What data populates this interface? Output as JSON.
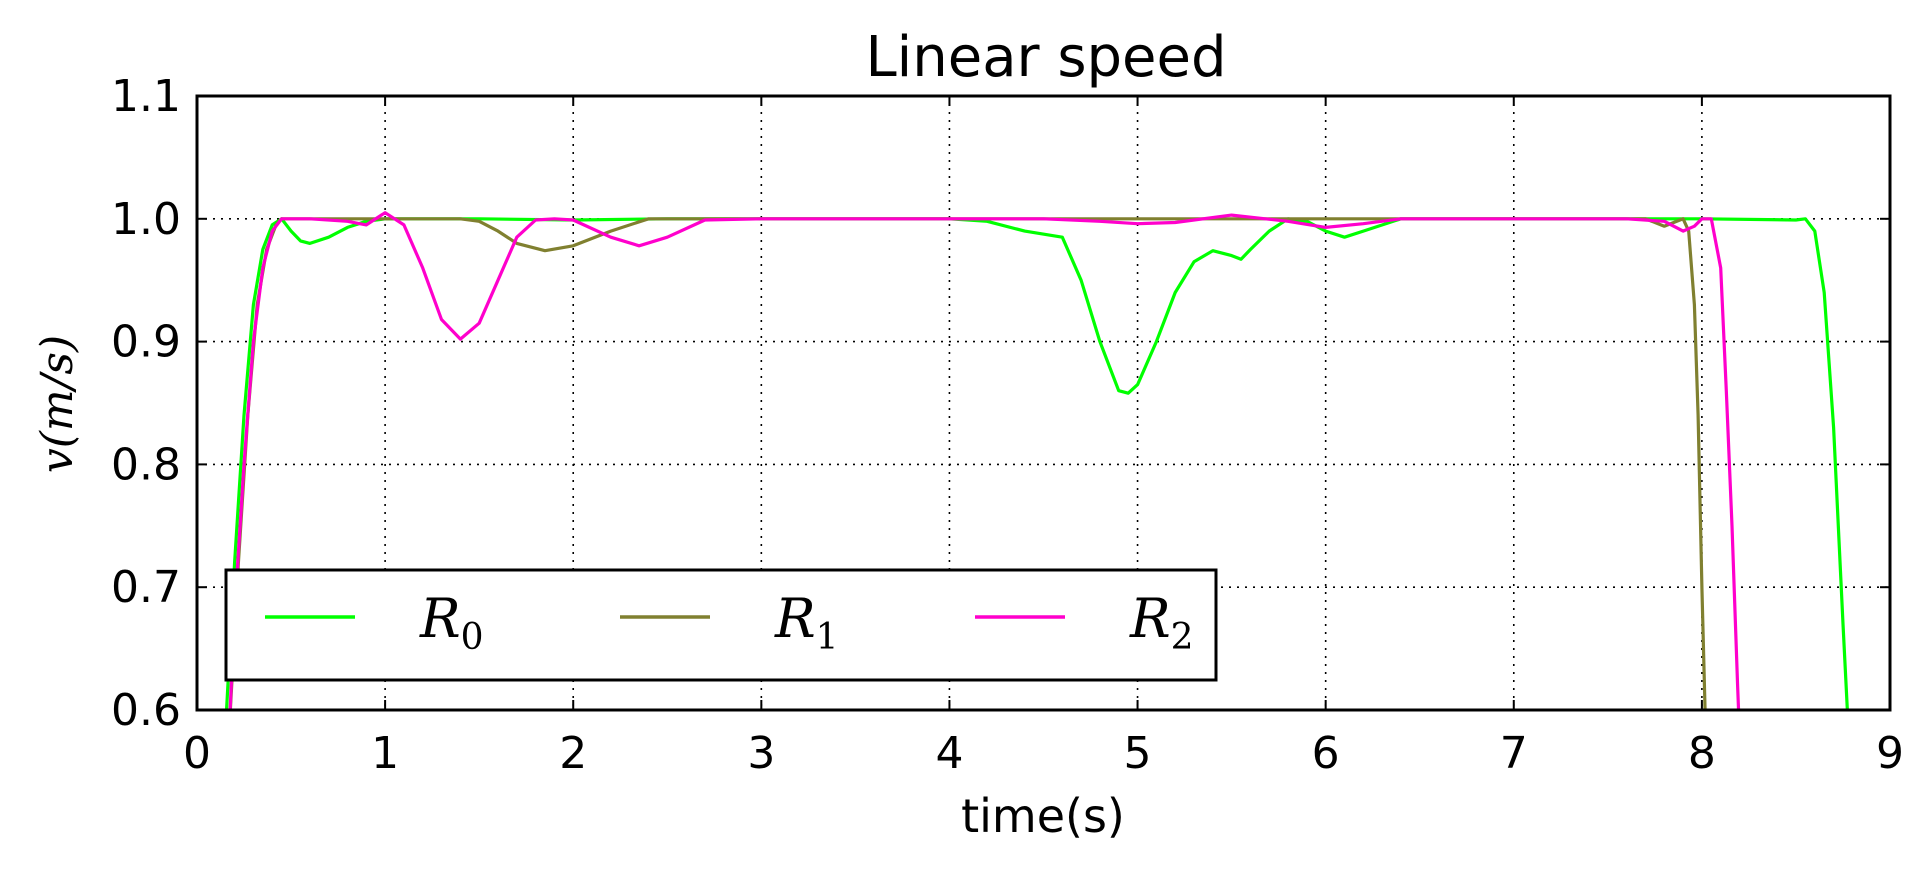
{
  "chart_data": {
    "type": "line",
    "title": "Linear speed",
    "xlabel": "time(s)",
    "ylabel": "v(m/s)",
    "xlim": [
      0,
      9
    ],
    "ylim": [
      0.6,
      1.1
    ],
    "x_ticks": [
      "0",
      "1",
      "2",
      "3",
      "4",
      "5",
      "6",
      "7",
      "8",
      "9"
    ],
    "y_ticks": [
      "0.6",
      "0.7",
      "0.8",
      "0.9",
      "1.0",
      "1.1"
    ],
    "grid": true,
    "legend_position": "lower-left",
    "series": [
      {
        "name": "R0",
        "label_base": "R",
        "label_sub": "0",
        "color": "#00ff00",
        "points": [
          [
            0.15,
            0.58
          ],
          [
            0.2,
            0.72
          ],
          [
            0.25,
            0.84
          ],
          [
            0.3,
            0.93
          ],
          [
            0.35,
            0.975
          ],
          [
            0.4,
            0.995
          ],
          [
            0.45,
            1.0
          ],
          [
            0.5,
            0.99
          ],
          [
            0.55,
            0.982
          ],
          [
            0.6,
            0.98
          ],
          [
            0.7,
            0.985
          ],
          [
            0.8,
            0.993
          ],
          [
            0.9,
            0.998
          ],
          [
            1.0,
            1.0
          ],
          [
            1.5,
            1.0
          ],
          [
            2.0,
            0.999
          ],
          [
            2.5,
            1.0
          ],
          [
            3.0,
            1.0
          ],
          [
            3.5,
            1.0
          ],
          [
            4.0,
            1.0
          ],
          [
            4.2,
            0.998
          ],
          [
            4.4,
            0.99
          ],
          [
            4.6,
            0.985
          ],
          [
            4.7,
            0.95
          ],
          [
            4.8,
            0.9
          ],
          [
            4.9,
            0.86
          ],
          [
            4.95,
            0.858
          ],
          [
            5.0,
            0.865
          ],
          [
            5.1,
            0.9
          ],
          [
            5.2,
            0.94
          ],
          [
            5.3,
            0.965
          ],
          [
            5.4,
            0.974
          ],
          [
            5.5,
            0.97
          ],
          [
            5.55,
            0.967
          ],
          [
            5.6,
            0.975
          ],
          [
            5.7,
            0.99
          ],
          [
            5.8,
            1.0
          ],
          [
            5.9,
            0.998
          ],
          [
            6.0,
            0.99
          ],
          [
            6.1,
            0.985
          ],
          [
            6.2,
            0.99
          ],
          [
            6.4,
            1.0
          ],
          [
            7.0,
            1.0
          ],
          [
            8.0,
            1.0
          ],
          [
            8.5,
            0.999
          ],
          [
            8.55,
            1.0
          ],
          [
            8.6,
            0.99
          ],
          [
            8.65,
            0.94
          ],
          [
            8.7,
            0.83
          ],
          [
            8.75,
            0.67
          ],
          [
            8.78,
            0.58
          ]
        ]
      },
      {
        "name": "R1",
        "label_base": "R",
        "label_sub": "1",
        "color": "#808030",
        "points": [
          [
            0.17,
            0.58
          ],
          [
            0.22,
            0.72
          ],
          [
            0.27,
            0.84
          ],
          [
            0.32,
            0.93
          ],
          [
            0.37,
            0.975
          ],
          [
            0.42,
            0.995
          ],
          [
            0.45,
            1.0
          ],
          [
            1.0,
            1.0
          ],
          [
            1.4,
            1.0
          ],
          [
            1.5,
            0.998
          ],
          [
            1.6,
            0.99
          ],
          [
            1.7,
            0.98
          ],
          [
            1.85,
            0.974
          ],
          [
            2.0,
            0.978
          ],
          [
            2.2,
            0.99
          ],
          [
            2.4,
            1.0
          ],
          [
            3.0,
            1.0
          ],
          [
            5.0,
            1.0
          ],
          [
            7.0,
            1.0
          ],
          [
            7.7,
            1.0
          ],
          [
            7.8,
            0.994
          ],
          [
            7.85,
            0.997
          ],
          [
            7.9,
            1.0
          ],
          [
            7.93,
            0.99
          ],
          [
            7.96,
            0.93
          ],
          [
            7.98,
            0.84
          ],
          [
            8.0,
            0.7
          ],
          [
            8.02,
            0.58
          ]
        ]
      },
      {
        "name": "R2",
        "label_base": "R",
        "label_sub": "2",
        "color": "#ff00cc",
        "points": [
          [
            0.17,
            0.58
          ],
          [
            0.2,
            0.68
          ],
          [
            0.25,
            0.8
          ],
          [
            0.3,
            0.9
          ],
          [
            0.35,
            0.96
          ],
          [
            0.4,
            0.99
          ],
          [
            0.45,
            1.0
          ],
          [
            0.6,
            1.0
          ],
          [
            0.8,
            0.998
          ],
          [
            0.9,
            0.995
          ],
          [
            1.0,
            1.005
          ],
          [
            1.1,
            0.995
          ],
          [
            1.2,
            0.96
          ],
          [
            1.3,
            0.918
          ],
          [
            1.4,
            0.902
          ],
          [
            1.5,
            0.915
          ],
          [
            1.6,
            0.95
          ],
          [
            1.7,
            0.985
          ],
          [
            1.8,
            0.999
          ],
          [
            1.9,
            1.0
          ],
          [
            2.0,
            0.999
          ],
          [
            2.2,
            0.985
          ],
          [
            2.35,
            0.978
          ],
          [
            2.5,
            0.985
          ],
          [
            2.7,
            0.999
          ],
          [
            3.0,
            1.0
          ],
          [
            4.0,
            1.0
          ],
          [
            4.5,
            1.0
          ],
          [
            4.8,
            0.998
          ],
          [
            5.0,
            0.996
          ],
          [
            5.2,
            0.997
          ],
          [
            5.5,
            1.003
          ],
          [
            5.8,
            0.998
          ],
          [
            6.0,
            0.993
          ],
          [
            6.2,
            0.996
          ],
          [
            6.4,
            1.0
          ],
          [
            7.0,
            1.0
          ],
          [
            7.6,
            1.0
          ],
          [
            7.8,
            0.998
          ],
          [
            7.9,
            0.99
          ],
          [
            7.96,
            0.994
          ],
          [
            8.0,
            1.0
          ],
          [
            8.05,
            1.0
          ],
          [
            8.1,
            0.96
          ],
          [
            8.13,
            0.86
          ],
          [
            8.16,
            0.75
          ],
          [
            8.19,
            0.62
          ],
          [
            8.2,
            0.58
          ]
        ]
      }
    ]
  }
}
